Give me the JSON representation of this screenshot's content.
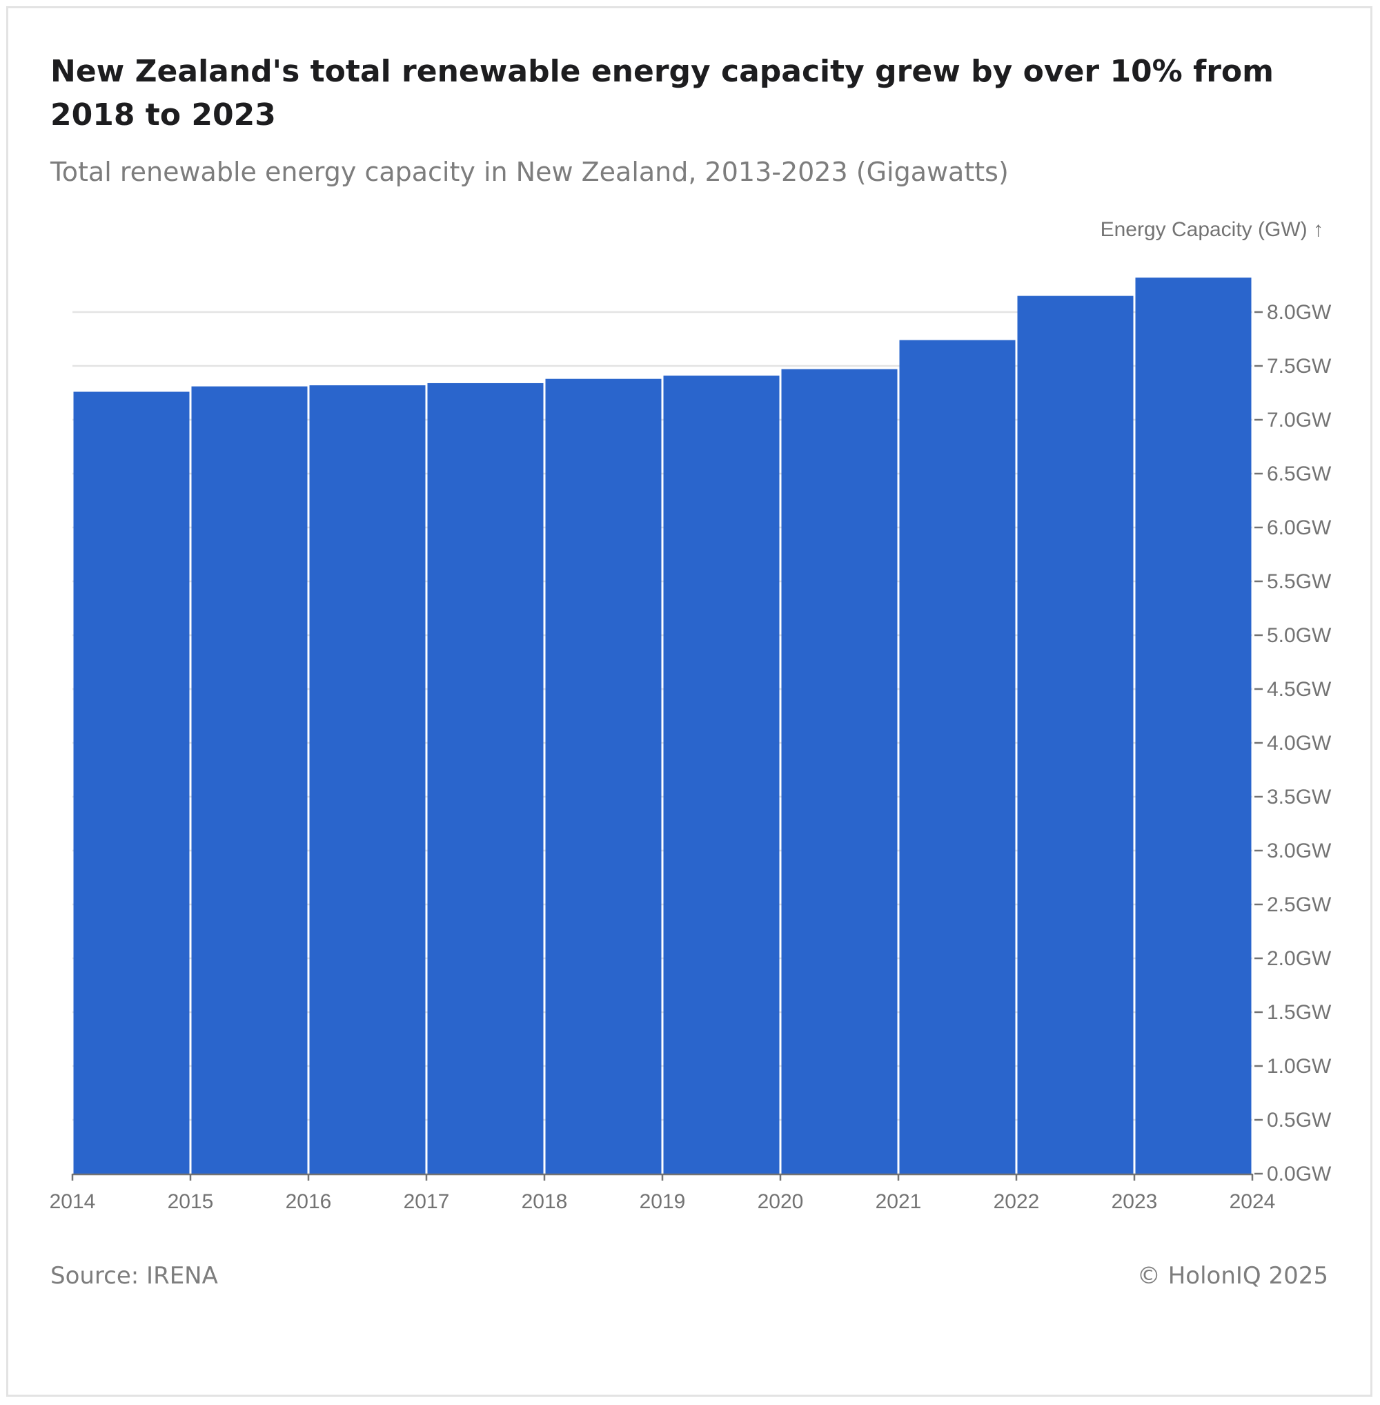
{
  "title": "New Zealand's total renewable energy capacity grew by over 10% from 2018 to 2023",
  "subtitle": "Total renewable energy capacity in New Zealand, 2013-2023 (Gigawatts)",
  "footer": {
    "source": "Source: IRENA",
    "credit": "© HolonIQ 2025"
  },
  "colors": {
    "bar": "#2a65cc",
    "grid": "#e3e3e3",
    "axis": "#737373",
    "text": "#737373"
  },
  "chart_data": {
    "type": "bar",
    "x_ticks": [
      "2014",
      "2015",
      "2016",
      "2017",
      "2018",
      "2019",
      "2020",
      "2021",
      "2022",
      "2023",
      "2024"
    ],
    "bins": [
      {
        "start": 2014,
        "end": 2015,
        "value": 7.26
      },
      {
        "start": 2015,
        "end": 2016,
        "value": 7.31
      },
      {
        "start": 2016,
        "end": 2017,
        "value": 7.32
      },
      {
        "start": 2017,
        "end": 2018,
        "value": 7.34
      },
      {
        "start": 2018,
        "end": 2019,
        "value": 7.38
      },
      {
        "start": 2019,
        "end": 2020,
        "value": 7.41
      },
      {
        "start": 2020,
        "end": 2021,
        "value": 7.47
      },
      {
        "start": 2021,
        "end": 2022,
        "value": 7.74
      },
      {
        "start": 2022,
        "end": 2023,
        "value": 8.15
      },
      {
        "start": 2023,
        "end": 2024,
        "value": 8.32
      }
    ],
    "xlim": [
      2014,
      2024
    ],
    "ylim": [
      0,
      8.0
    ],
    "y_ticks": [
      0,
      0.5,
      1.0,
      1.5,
      2.0,
      2.5,
      3.0,
      3.5,
      4.0,
      4.5,
      5.0,
      5.5,
      6.0,
      6.5,
      7.0,
      7.5,
      8.0
    ],
    "y_tick_labels": [
      "0.0GW",
      "0.5GW",
      "1.0GW",
      "1.5GW",
      "2.0GW",
      "2.5GW",
      "3.0GW",
      "3.5GW",
      "4.0GW",
      "4.5GW",
      "5.0GW",
      "5.5GW",
      "6.0GW",
      "6.5GW",
      "7.0GW",
      "7.5GW",
      "8.0GW"
    ],
    "ylabel": "Energy Capacity (GW) ↑",
    "xlabel": "",
    "y_axis_side": "right",
    "grid": true
  }
}
